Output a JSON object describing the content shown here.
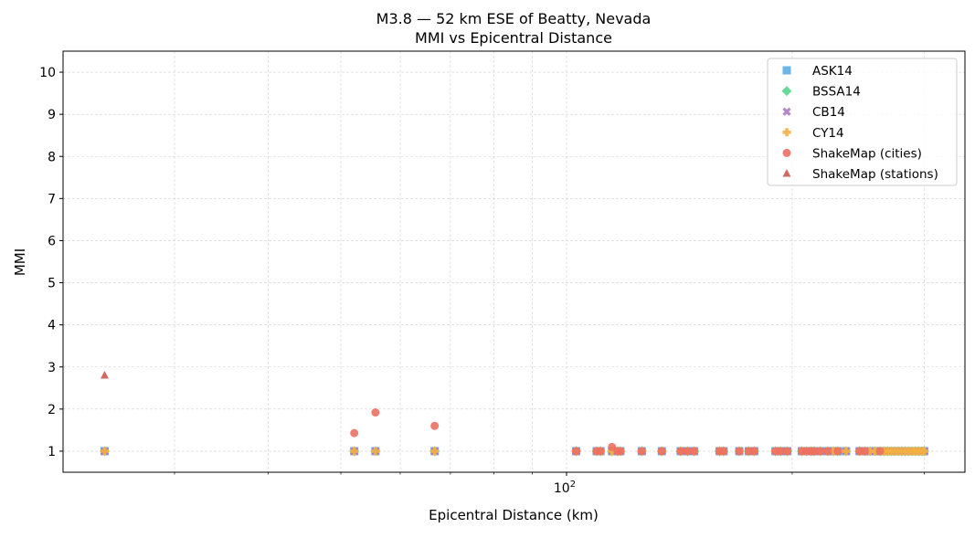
{
  "chart_data": {
    "type": "scatter",
    "title": "M3.8 — 52 km ESE of Beatty, Nevada",
    "subtitle": "MMI vs Epicentral Distance",
    "xlabel": "Epicentral Distance (km)",
    "ylabel": "MMI",
    "x_scale": "log",
    "xlim": [
      21.3,
      340
    ],
    "ylim": [
      0.5,
      10.5
    ],
    "x_major_ticks": [
      {
        "value": 100,
        "label": "10",
        "exp": "2"
      }
    ],
    "x_minor_ticks": [
      30,
      40,
      50,
      60,
      70,
      80,
      90,
      200,
      300
    ],
    "y_ticks": [
      "1",
      "2",
      "3",
      "4",
      "5",
      "6",
      "7",
      "8",
      "9",
      "10"
    ],
    "grid": true,
    "legend_position": "top-right",
    "series": [
      {
        "name": "ASK14",
        "marker": "square",
        "color": "#5DADE2",
        "x": [
          24.2,
          52.1,
          55.6,
          66.7,
          103,
          109.7,
          111,
          115,
          117,
          118,
          126,
          134,
          142,
          145,
          148,
          160,
          162,
          170,
          175,
          178,
          190,
          193,
          197,
          206,
          209,
          212,
          214,
          218,
          223,
          227,
          230,
          236,
          246,
          250,
          254,
          258,
          262,
          265,
          268,
          271,
          274,
          277,
          280,
          283,
          286,
          289,
          292,
          295,
          298,
          300
        ],
        "y_constant": 1
      },
      {
        "name": "BSSA14",
        "marker": "diamond",
        "color": "#58D68D",
        "x": [
          24.2,
          52.1,
          55.6,
          66.7,
          103,
          109.7,
          111,
          115,
          117,
          118,
          126,
          134,
          142,
          145,
          148,
          160,
          162,
          170,
          175,
          178,
          190,
          193,
          197,
          206,
          209,
          212,
          214,
          218,
          223,
          227,
          230,
          236,
          246,
          250,
          254,
          258,
          262,
          265,
          268,
          271,
          274,
          277,
          280,
          283,
          286,
          289,
          292,
          295,
          298,
          300
        ],
        "y_constant": 1
      },
      {
        "name": "CB14",
        "marker": "x",
        "color": "#AF7AC5",
        "x": [
          24.2,
          52.1,
          55.6,
          66.7,
          103,
          109.7,
          111,
          115,
          117,
          118,
          126,
          134,
          142,
          145,
          148,
          160,
          162,
          170,
          175,
          178,
          190,
          193,
          197,
          206,
          209,
          212,
          214,
          218,
          223,
          227,
          230,
          236,
          246,
          250,
          254,
          258,
          262,
          265,
          268,
          271,
          274,
          277,
          280,
          283,
          286,
          289,
          292,
          295,
          298,
          300
        ],
        "y_constant": 1
      },
      {
        "name": "CY14",
        "marker": "plus",
        "color": "#F5B041",
        "x": [
          24.2,
          52.1,
          55.6,
          66.7,
          103,
          109.7,
          111,
          115,
          117,
          118,
          126,
          134,
          142,
          145,
          148,
          160,
          162,
          170,
          175,
          178,
          190,
          193,
          197,
          206,
          209,
          212,
          214,
          218,
          223,
          227,
          230,
          236,
          246,
          250,
          254,
          258,
          262,
          265,
          268,
          271,
          274,
          277,
          280,
          283,
          286,
          289,
          292,
          295,
          298,
          300
        ],
        "y_constant": 1
      },
      {
        "name": "ShakeMap (cities)",
        "marker": "circle",
        "color": "#EC7063",
        "points": [
          [
            52.1,
            1.43
          ],
          [
            55.6,
            1.92
          ],
          [
            66.7,
            1.6
          ],
          [
            103,
            1
          ],
          [
            109.7,
            1
          ],
          [
            111,
            1
          ],
          [
            115,
            1.1
          ],
          [
            117,
            1
          ],
          [
            118,
            1
          ],
          [
            126,
            1
          ],
          [
            134,
            1
          ],
          [
            142,
            1
          ],
          [
            145,
            1
          ],
          [
            148,
            1
          ],
          [
            160,
            1
          ],
          [
            162,
            1
          ],
          [
            170,
            1
          ],
          [
            175,
            1
          ],
          [
            178,
            1
          ],
          [
            190,
            1
          ],
          [
            193,
            1
          ],
          [
            197,
            1
          ],
          [
            206,
            1
          ],
          [
            209,
            1
          ],
          [
            212,
            1
          ],
          [
            214,
            1
          ],
          [
            218,
            1
          ],
          [
            223,
            1
          ],
          [
            230,
            1
          ],
          [
            246,
            1
          ],
          [
            250,
            1
          ],
          [
            262,
            1
          ]
        ]
      },
      {
        "name": "ShakeMap (stations)",
        "marker": "triangle",
        "color": "#CD6155",
        "points": [
          [
            24.2,
            2.8
          ]
        ]
      }
    ]
  }
}
